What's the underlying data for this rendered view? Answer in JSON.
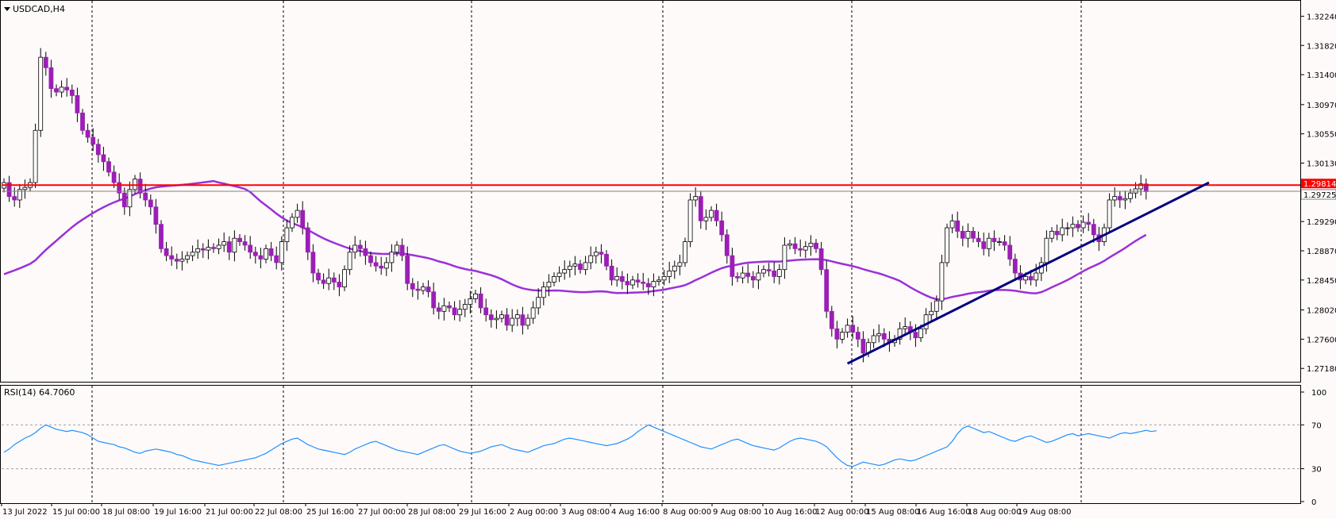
{
  "symbol_label": "USDCAD,H4",
  "rsi_label": "RSI(14) 64.7060",
  "colors": {
    "background": "#fffafa",
    "bull_body": "#ffffff",
    "bear_body": "#9b1fb5",
    "wick": "#000000",
    "moving_average": "#9b30d9",
    "resistance_line": "#ff0000",
    "trendline": "#000080",
    "rsi_line": "#1e90ff",
    "price_badge": "#ff0000"
  },
  "chart_data": [
    {
      "type": "candlestick",
      "title": "USDCAD,H4",
      "ylim": [
        1.27,
        1.3245
      ],
      "y_ticks": [
        "1.32240",
        "1.31820",
        "1.31400",
        "1.30970",
        "1.30550",
        "1.30130",
        "1.29290",
        "1.28870",
        "1.28450",
        "1.28020",
        "1.27600",
        "1.27180"
      ],
      "x_ticks": [
        "13 Jul 2022",
        "15 Jul 00:00",
        "18 Jul 08:00",
        "19 Jul 16:00",
        "21 Jul 00:00",
        "22 Jul 08:00",
        "25 Jul 16:00",
        "27 Jul 00:00",
        "28 Jul 08:00",
        "29 Jul 16:00",
        "2 Aug 00:00",
        "3 Aug 08:00",
        "4 Aug 16:00",
        "8 Aug 00:00",
        "9 Aug 08:00",
        "10 Aug 16:00",
        "12 Aug 00:00",
        "15 Aug 08:00",
        "16 Aug 16:00",
        "18 Aug 00:00",
        "19 Aug 08:00"
      ],
      "grid": "vertical dashed",
      "price_tags": [
        "1.29814",
        "1.29725"
      ],
      "resistance_level": 1.29814,
      "current_level": 1.29725,
      "trendline": [
        {
          "bar": 161,
          "price": 1.2725
        },
        {
          "bar": 230,
          "price": 1.2985
        }
      ],
      "close": [
        1.2985,
        1.2965,
        1.296,
        1.2975,
        1.2978,
        1.2985,
        1.306,
        1.3165,
        1.315,
        1.312,
        1.3115,
        1.3122,
        1.3118,
        1.311,
        1.3085,
        1.306,
        1.305,
        1.304,
        1.3025,
        1.3015,
        1.3,
        1.2985,
        1.297,
        1.295,
        1.2975,
        1.299,
        1.297,
        1.296,
        1.295,
        1.2925,
        1.289,
        1.288,
        1.2875,
        1.2872,
        1.2875,
        1.288,
        1.2885,
        1.289,
        1.2888,
        1.2892,
        1.289,
        1.2895,
        1.29,
        1.2885,
        1.2905,
        1.29,
        1.2895,
        1.2885,
        1.288,
        1.2875,
        1.289,
        1.288,
        1.287,
        1.29,
        1.292,
        1.2935,
        1.2945,
        1.292,
        1.2885,
        1.2855,
        1.2845,
        1.284,
        1.2848,
        1.2842,
        1.2835,
        1.286,
        1.2885,
        1.2895,
        1.289,
        1.288,
        1.287,
        1.2865,
        1.2862,
        1.287,
        1.2885,
        1.2895,
        1.288,
        1.284,
        1.2832,
        1.283,
        1.2835,
        1.2828,
        1.2805,
        1.28,
        1.2808,
        1.2805,
        1.2795,
        1.2803,
        1.281,
        1.2818,
        1.2825,
        1.2805,
        1.2795,
        1.2788,
        1.279,
        1.2795,
        1.278,
        1.279,
        1.2795,
        1.278,
        1.279,
        1.2805,
        1.282,
        1.2835,
        1.2842,
        1.285,
        1.2855,
        1.286,
        1.2865,
        1.2868,
        1.286,
        1.287,
        1.288,
        1.2885,
        1.2882,
        1.2865,
        1.2845,
        1.285,
        1.2843,
        1.2838,
        1.2845,
        1.2842,
        1.284,
        1.2835,
        1.2843,
        1.2845,
        1.285,
        1.2858,
        1.2865,
        1.287,
        1.29,
        1.296,
        1.2965,
        1.293,
        1.2935,
        1.2945,
        1.293,
        1.291,
        1.288,
        1.285,
        1.2848,
        1.2855,
        1.285,
        1.2845,
        1.2855,
        1.286,
        1.2858,
        1.285,
        1.286,
        1.2895,
        1.2897,
        1.289,
        1.2888,
        1.2893,
        1.2898,
        1.289,
        1.286,
        1.28,
        1.2775,
        1.276,
        1.277,
        1.278,
        1.277,
        1.276,
        1.274,
        1.2755,
        1.2765,
        1.2768,
        1.276,
        1.2755,
        1.276,
        1.2775,
        1.2778,
        1.277,
        1.2762,
        1.2775,
        1.2795,
        1.28,
        1.2815,
        1.287,
        1.292,
        1.293,
        1.2915,
        1.2905,
        1.2915,
        1.2905,
        1.29,
        1.289,
        1.2905,
        1.29,
        1.29,
        1.2895,
        1.2875,
        1.2855,
        1.2845,
        1.285,
        1.2845,
        1.2855,
        1.287,
        1.2905,
        1.2915,
        1.291,
        1.292,
        1.292,
        1.2925,
        1.292,
        1.2928,
        1.2925,
        1.291,
        1.29,
        1.292,
        1.296,
        1.2965,
        1.296,
        1.2962,
        1.297,
        1.2976,
        1.2983,
        1.2972
      ],
      "ma_period": 200,
      "series": [
        {
          "name": "",
          "values": []
        }
      ]
    },
    {
      "type": "line",
      "title": "RSI(14) 64.7060",
      "ylim": [
        0,
        100
      ],
      "y_ticks": [
        "100",
        "70",
        "30",
        "0"
      ],
      "levels": [
        70,
        30
      ],
      "values": [
        45,
        48,
        52,
        55,
        58,
        60,
        63,
        67,
        70,
        68,
        66,
        65,
        64,
        65,
        64,
        63,
        61,
        58,
        55,
        54,
        53,
        52,
        50,
        49,
        47,
        45,
        44,
        46,
        47,
        48,
        47,
        46,
        45,
        43,
        42,
        40,
        38,
        37,
        36,
        35,
        34,
        33,
        34,
        35,
        36,
        37,
        38,
        39,
        40,
        42,
        44,
        47,
        50,
        53,
        55,
        57,
        58,
        55,
        52,
        50,
        48,
        47,
        46,
        45,
        44,
        43,
        45,
        48,
        50,
        52,
        54,
        55,
        53,
        51,
        49,
        47,
        46,
        45,
        44,
        43,
        45,
        47,
        49,
        51,
        52,
        50,
        48,
        46,
        45,
        44,
        45,
        46,
        48,
        50,
        51,
        52,
        50,
        48,
        47,
        46,
        45,
        47,
        49,
        51,
        52,
        53,
        55,
        57,
        58,
        57,
        56,
        55,
        54,
        53,
        52,
        51,
        52,
        53,
        55,
        57,
        60,
        64,
        67,
        70,
        68,
        66,
        64,
        62,
        60,
        58,
        56,
        54,
        52,
        50,
        49,
        48,
        50,
        52,
        54,
        56,
        57,
        55,
        53,
        51,
        50,
        49,
        48,
        47,
        49,
        52,
        55,
        57,
        58,
        57,
        56,
        55,
        53,
        50,
        45,
        40,
        36,
        33,
        32,
        34,
        36,
        35,
        34,
        33,
        34,
        36,
        38,
        39,
        38,
        37,
        38,
        40,
        42,
        44,
        46,
        48,
        50,
        55,
        62,
        67,
        69,
        67,
        65,
        63,
        64,
        62,
        60,
        58,
        56,
        55,
        57,
        59,
        60,
        58,
        56,
        54,
        55,
        57,
        59,
        61,
        62,
        60,
        61,
        62,
        61,
        60,
        59,
        58,
        60,
        62,
        63,
        62,
        63,
        64,
        65,
        64,
        64.7
      ]
    }
  ]
}
